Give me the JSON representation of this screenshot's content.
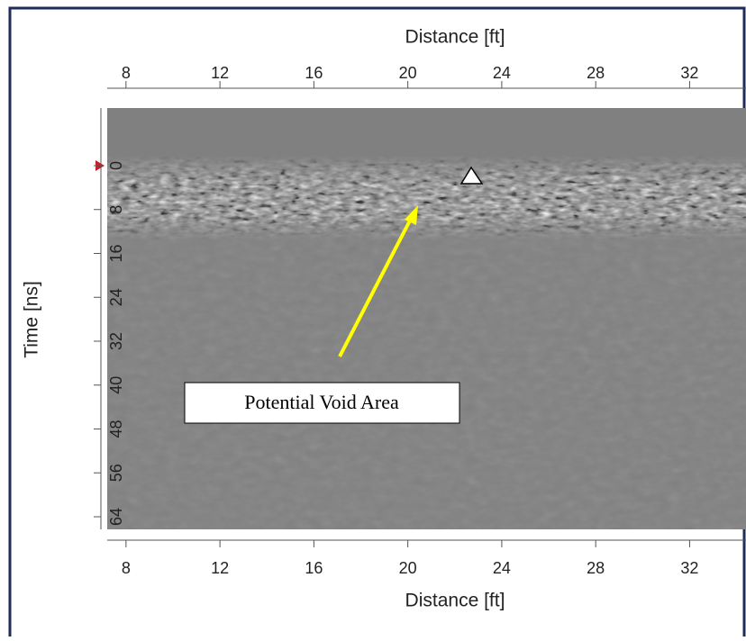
{
  "chart_data": {
    "type": "radargram",
    "xlabel": "Distance [ft]",
    "ylabel": "Time [ns]",
    "xlim": [
      7.2,
      34.4
    ],
    "xticks": [
      8,
      12,
      16,
      20,
      24,
      28,
      32
    ],
    "ylim": [
      -10.5,
      66.3
    ],
    "yticks": [
      0,
      8,
      16,
      24,
      32,
      40,
      48,
      56,
      64
    ],
    "annotation": "Potential Void Area"
  }
}
